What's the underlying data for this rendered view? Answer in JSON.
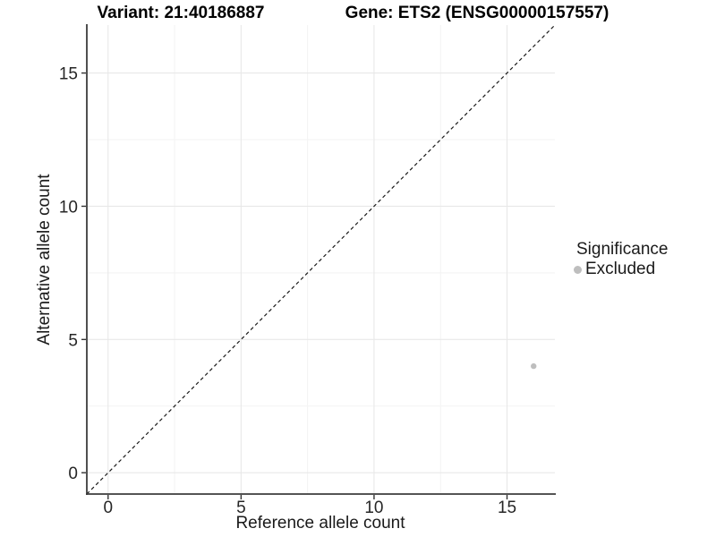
{
  "header": {
    "variant_title": "Variant: 21:40186887",
    "gene_title": "Gene: ETS2 (ENSG00000157557)"
  },
  "chart_data": {
    "type": "scatter",
    "titles": [
      "Variant: 21:40186887",
      "Gene: ETS2 (ENSG00000157557)"
    ],
    "xlabel": "Reference allele count",
    "ylabel": "Alternative allele count",
    "xlim": [
      -0.8,
      16.8
    ],
    "ylim": [
      -0.8,
      16.8
    ],
    "x_ticks": [
      0,
      5,
      10,
      15
    ],
    "y_ticks": [
      0,
      5,
      10,
      15
    ],
    "x_minor_ticks": [
      2.5,
      7.5,
      12.5
    ],
    "y_minor_ticks": [
      2.5,
      7.5,
      12.5
    ],
    "grid": true,
    "reference_line": {
      "kind": "identity",
      "slope": 1,
      "intercept": 0,
      "style": "dashed",
      "color": "#1a1a1a"
    },
    "series": [
      {
        "name": "Excluded",
        "color": "#bebebe",
        "points": [
          {
            "x": 16,
            "y": 4
          }
        ]
      }
    ],
    "legend": {
      "title": "Significance",
      "position": "right",
      "entries": [
        {
          "label": "Excluded",
          "color": "#bebebe"
        }
      ]
    }
  },
  "style_colors": {
    "axis_line": "#3c3c3c",
    "tick_mark": "#333333",
    "grid_major": "#e8e8e8",
    "grid_minor": "#f3f3f3",
    "background": "#ffffff"
  }
}
